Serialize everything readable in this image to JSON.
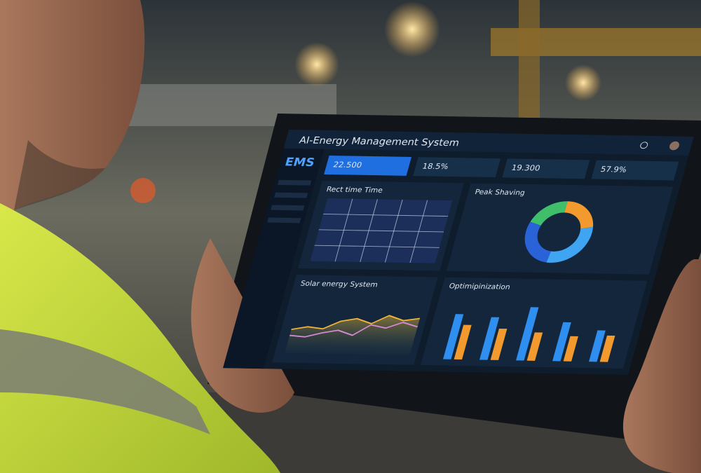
{
  "header": {
    "title": "AI-Energy Management System"
  },
  "sidebar": {
    "logo": "EMS"
  },
  "kpis": [
    "22.500",
    "18.5%",
    "19.300",
    "57.9%"
  ],
  "panels": {
    "realtime": {
      "title": "Rect time Time"
    },
    "peak": {
      "title": "Peak Shaving",
      "segments": [
        22,
        30,
        28,
        20
      ]
    },
    "solar": {
      "title": "Solar energy System",
      "series": [
        [
          40,
          45,
          42,
          55,
          60,
          52,
          66,
          58,
          62
        ],
        [
          30,
          28,
          35,
          40,
          32,
          50,
          45,
          55,
          48
        ]
      ]
    },
    "optimization": {
      "title": "Optimipinization",
      "series": [
        [
          72,
          68,
          85,
          62,
          50
        ],
        [
          55,
          50,
          45,
          40,
          42
        ]
      ]
    }
  }
}
